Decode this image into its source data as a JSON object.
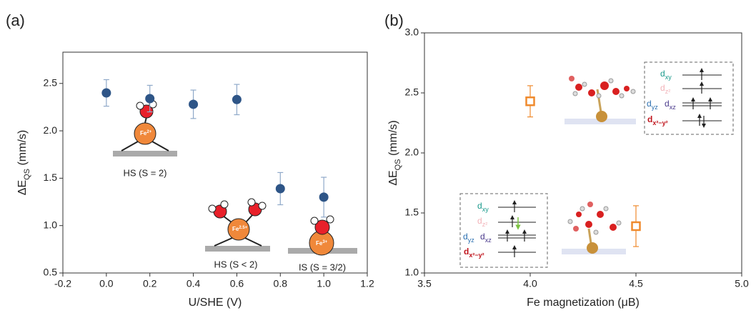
{
  "chart_data": [
    {
      "type": "scatter",
      "panel_label": "(a)",
      "xlabel": "U/SHE (V)",
      "ylabel": {
        "main": "ΔE",
        "sub": "QS",
        "rest": " (mm/s)"
      },
      "x": [
        0,
        0.2,
        0.4,
        0.6,
        0.8,
        1.0
      ],
      "series": [
        {
          "color": "#2e5587",
          "error_color": "#8fa9c9",
          "marker": "circle",
          "values": [
            2.4,
            2.34,
            2.28,
            2.33,
            1.39,
            1.3
          ],
          "errors": [
            0.14,
            0.14,
            0.15,
            0.16,
            0.17,
            0.21
          ]
        }
      ],
      "xlim": [
        -0.2,
        1.2
      ],
      "xticks": [
        -0.2,
        {
          "value": 0,
          "label": "0.0"
        },
        0.2,
        0.4,
        0.6,
        0.8,
        {
          "value": 1,
          "label": "1.0"
        },
        1.2
      ],
      "ylim": [
        0.5,
        2.83
      ],
      "yticks": [
        0.5,
        {
          "value": 1,
          "label": "1.0"
        },
        1.5,
        {
          "value": 2,
          "label": "2.0"
        },
        2.5
      ],
      "annotations": [
        "HS (S = 2)",
        "HS (S < 2)",
        "IS (S = 3/2)"
      ],
      "ions": [
        {
          "base": "Fe",
          "charge": "2+"
        },
        {
          "base": "Fe",
          "charge": "2.5+"
        },
        {
          "base": "Fe",
          "charge": "3+"
        }
      ]
    },
    {
      "type": "scatter",
      "panel_label": "(b)",
      "xlabel": "Fe magnetization (μB)",
      "ylabel": {
        "main": "ΔE",
        "sub": "QS",
        "rest": " (mm/s)"
      },
      "x": [
        4.0,
        4.5
      ],
      "series": [
        {
          "color": "#ef8a2d",
          "error_color": "#ef8a2d",
          "marker": "square",
          "values": [
            2.43,
            1.39
          ],
          "errors": [
            0.13,
            0.17
          ]
        }
      ],
      "xlim": [
        3.5,
        5.0
      ],
      "xticks": [
        3.5,
        {
          "value": 4,
          "label": "4.0"
        },
        4.5,
        {
          "value": 5,
          "label": "5.0"
        }
      ],
      "ylim": [
        1.0,
        3.0
      ],
      "yticks": [
        {
          "value": 1,
          "label": "1.0"
        },
        1.5,
        {
          "value": 2,
          "label": "2.0"
        },
        2.5,
        {
          "value": 3,
          "label": "3.0"
        }
      ],
      "insets": [
        {
          "orbitals": [
            {
              "main": "d",
              "sub": "xy"
            },
            {
              "main": "d",
              "sub": "z²"
            },
            {
              "main": "d",
              "sub": "yz"
            },
            {
              "main": "d",
              "sub": "xz"
            },
            {
              "main": "d",
              "sub": "x²−y²"
            }
          ]
        },
        {
          "orbitals": [
            {
              "main": "d",
              "sub": "xy"
            },
            {
              "main": "d",
              "sub": "z²"
            },
            {
              "main": "d",
              "sub": "yz"
            },
            {
              "main": "d",
              "sub": "xz"
            },
            {
              "main": "d",
              "sub": "x²−y²"
            }
          ]
        }
      ]
    }
  ]
}
